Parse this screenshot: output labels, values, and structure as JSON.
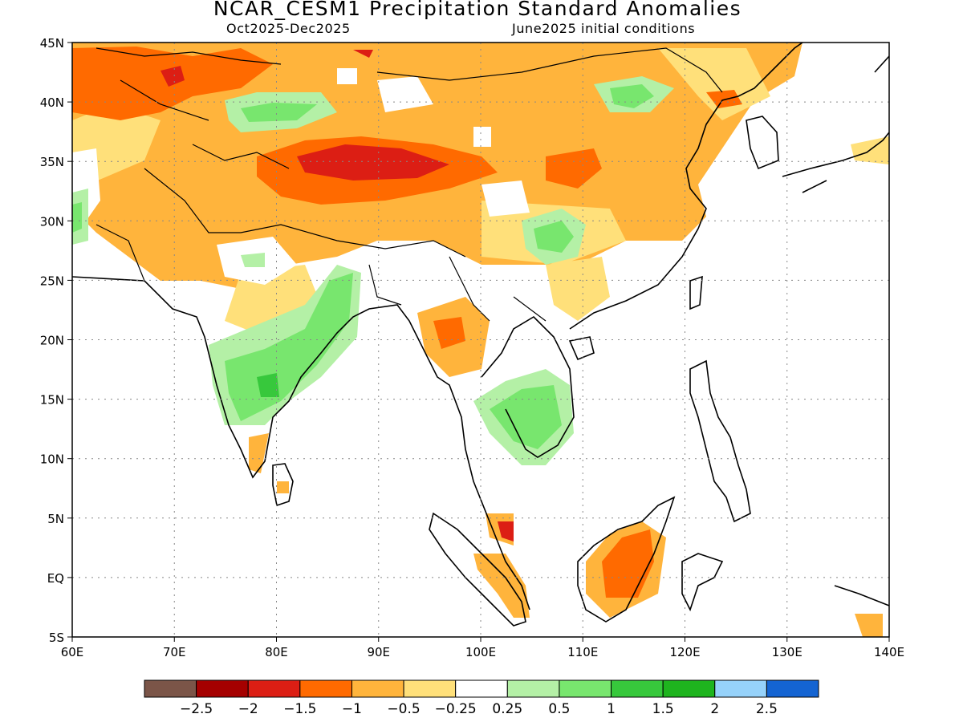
{
  "header": {
    "title": "NCAR_CESM1 Precipitation Standard Anomalies",
    "period": "Oct2025-Dec2025",
    "init": "June2025 initial conditions"
  },
  "map": {
    "lon_range": [
      60,
      140
    ],
    "lat_range": [
      -5,
      45
    ],
    "lon_ticks": [
      {
        "value": 60,
        "label": "60E"
      },
      {
        "value": 70,
        "label": "70E"
      },
      {
        "value": 80,
        "label": "80E"
      },
      {
        "value": 90,
        "label": "90E"
      },
      {
        "value": 100,
        "label": "100E"
      },
      {
        "value": 110,
        "label": "110E"
      },
      {
        "value": 120,
        "label": "120E"
      },
      {
        "value": 130,
        "label": "130E"
      },
      {
        "value": 140,
        "label": "140E"
      }
    ],
    "lat_ticks": [
      {
        "value": 45,
        "label": "45N"
      },
      {
        "value": 40,
        "label": "40N"
      },
      {
        "value": 35,
        "label": "35N"
      },
      {
        "value": 30,
        "label": "30N"
      },
      {
        "value": 25,
        "label": "25N"
      },
      {
        "value": 20,
        "label": "20N"
      },
      {
        "value": 15,
        "label": "15N"
      },
      {
        "value": 10,
        "label": "10N"
      },
      {
        "value": 5,
        "label": "5N"
      },
      {
        "value": 0,
        "label": "EQ"
      },
      {
        "value": -5,
        "label": "5S"
      }
    ],
    "grid": "dotted"
  },
  "colorbar": {
    "colors": [
      "#7b5548",
      "#a50000",
      "#dc1e14",
      "#ff6a00",
      "#ffb43c",
      "#ffe07a",
      "#ffffff",
      "#b4f0a6",
      "#78e66e",
      "#37c83c",
      "#1eb41e",
      "#96d2fa",
      "#1464d2"
    ],
    "labels": [
      "-2.5",
      "-2",
      "-1.5",
      "-1",
      "-0.5",
      "-0.25",
      "0.25",
      "0.5",
      "1",
      "1.5",
      "2",
      "2.5"
    ]
  }
}
